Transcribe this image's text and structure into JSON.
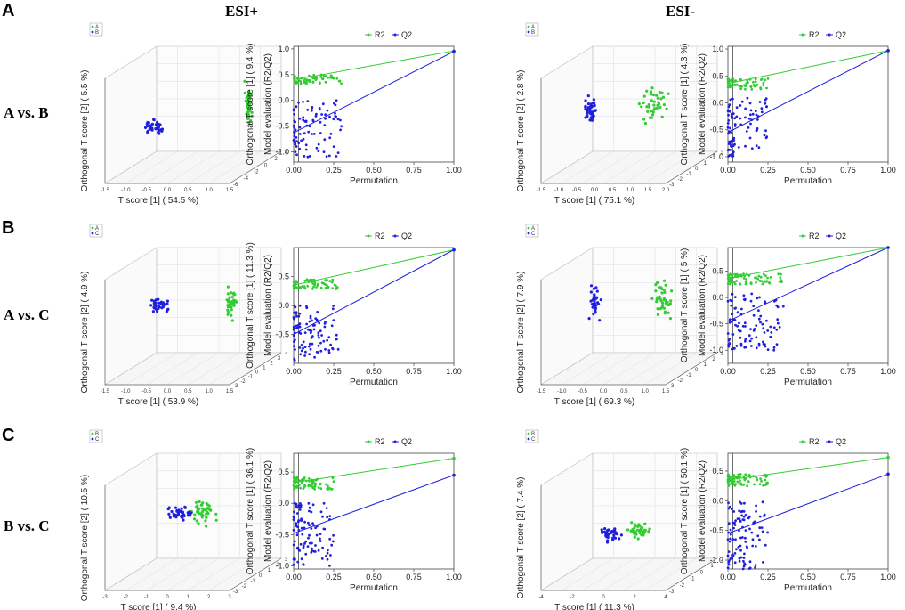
{
  "figure": {
    "panel_letters": [
      "A",
      "B",
      "C"
    ],
    "column_headers": [
      "ESI+",
      "ESI-"
    ],
    "row_labels": [
      "A vs. B",
      "A vs. C",
      "B vs. C"
    ]
  },
  "colors": {
    "green": "#33cc33",
    "blue": "#1f1fdd"
  },
  "chart_data": [
    {
      "type": "scatter3d",
      "row": 0,
      "col": 0,
      "title": "",
      "xlabel": "T score [1] ( 54.5 %)",
      "ylabel": "Orthogonal T score [2] ( 5.5 %)",
      "legend": [
        "A",
        "B"
      ],
      "x_ticks": [
        "-1.5",
        "-1.0",
        "-0.5",
        "0.0",
        "0.5",
        "1.0",
        "1.5"
      ],
      "depth_ticks": [
        "4",
        "2",
        "0",
        "-2",
        "-4",
        "-6"
      ],
      "groups": [
        {
          "name": "A",
          "center": [
            0.9,
            0.55
          ],
          "spread": [
            0.03,
            0.28
          ],
          "n": 40
        },
        {
          "name": "B",
          "center": [
            0.27,
            0.78
          ],
          "spread": [
            0.09,
            0.09
          ],
          "n": 40
        }
      ]
    },
    {
      "type": "scatter",
      "row": 0,
      "col": 1,
      "xlabel": "Permutation",
      "ylabel": "Model evaluation (R2/Q2)",
      "y2label": "Orthogonal T score [1] ( 9.4 %)",
      "legend": [
        "R2",
        "Q2"
      ],
      "xlim": [
        0,
        1
      ],
      "ylim": [
        -1.2,
        1.05
      ],
      "x_ticks": [
        "0.00",
        "0.25",
        "0.50",
        "0.75",
        "1.00"
      ],
      "y_ticks": [
        "-1.0",
        "-0.5",
        "0.0",
        "0.5",
        "1.0"
      ],
      "series": [
        {
          "name": "R2",
          "line": [
            [
              0.0,
              0.4
            ],
            [
              1.0,
              0.96
            ]
          ],
          "cloud": {
            "x": [
              0,
              0.3
            ],
            "y": [
              0.32,
              0.5
            ]
          },
          "n": 60
        },
        {
          "name": "Q2",
          "line": [
            [
              0.0,
              -0.63
            ],
            [
              1.0,
              0.95
            ]
          ],
          "cloud": {
            "x": [
              0,
              0.3
            ],
            "y": [
              -1.1,
              0.0
            ]
          },
          "n": 90
        }
      ]
    },
    {
      "type": "scatter3d",
      "row": 0,
      "col": 2,
      "xlabel": "T score [1] ( 75.1 %)",
      "ylabel": "Orthogonal T score [2] ( 2.8 %)",
      "legend": [
        "A",
        "B"
      ],
      "x_ticks": [
        "-1.5",
        "-1.0",
        "-0.5",
        "0.0",
        "0.5",
        "1.0",
        "1.5",
        "2.0"
      ],
      "depth_ticks": [
        "3",
        "2",
        "1",
        "0",
        "-1",
        "-2",
        "-3"
      ],
      "groups": [
        {
          "name": "A",
          "center": [
            0.7,
            0.55
          ],
          "spread": [
            0.12,
            0.25
          ],
          "n": 40
        },
        {
          "name": "B",
          "center": [
            0.27,
            0.6
          ],
          "spread": [
            0.06,
            0.18
          ],
          "n": 40
        }
      ]
    },
    {
      "type": "scatter",
      "row": 0,
      "col": 3,
      "xlabel": "Permutation",
      "ylabel": "Model evaluation (R2/Q2)",
      "y2label": "Orthogonal T score [1] ( 4.3 %)",
      "legend": [
        "R2",
        "Q2"
      ],
      "xlim": [
        0,
        1
      ],
      "ylim": [
        -1.1,
        1.05
      ],
      "x_ticks": [
        "0.00",
        "0.25",
        "0.50",
        "0.75",
        "1.00"
      ],
      "y_ticks": [
        "-1.0",
        "-0.5",
        "0.0",
        "0.5",
        "1.0"
      ],
      "series": [
        {
          "name": "R2",
          "line": [
            [
              0.0,
              0.36
            ],
            [
              1.0,
              0.97
            ]
          ],
          "cloud": {
            "x": [
              0,
              0.25
            ],
            "y": [
              0.25,
              0.45
            ]
          },
          "n": 60
        },
        {
          "name": "Q2",
          "line": [
            [
              0.0,
              -0.55
            ],
            [
              1.0,
              0.97
            ]
          ],
          "cloud": {
            "x": [
              0,
              0.25
            ],
            "y": [
              -1.0,
              0.1
            ]
          },
          "n": 90
        }
      ]
    },
    {
      "type": "scatter3d",
      "row": 1,
      "col": 0,
      "xlabel": "T score [1] ( 53.9 %)",
      "ylabel": "Orthogonal T score [2] ( 4.9 %)",
      "legend": [
        "A",
        "C"
      ],
      "x_ticks": [
        "-1.5",
        "-1.0",
        "-0.5",
        "0.0",
        "0.5",
        "1.0",
        "1.5"
      ],
      "depth_ticks": [
        "4",
        "3",
        "2",
        "1",
        "0",
        "-1",
        "-2",
        "-3"
      ],
      "groups": [
        {
          "name": "A",
          "center": [
            0.78,
            0.5
          ],
          "spread": [
            0.05,
            0.25
          ],
          "n": 40
        },
        {
          "name": "C",
          "center": [
            0.3,
            0.55
          ],
          "spread": [
            0.1,
            0.1
          ],
          "n": 35
        }
      ]
    },
    {
      "type": "scatter",
      "row": 1,
      "col": 1,
      "xlabel": "Permutation",
      "ylabel": "Model evaluation (R2/Q2)",
      "y2label": "Orthogonal T score [1] ( 11.3 %)",
      "legend": [
        "R2",
        "Q2"
      ],
      "xlim": [
        0,
        1
      ],
      "ylim": [
        -1.0,
        1.0
      ],
      "x_ticks": [
        "0.00",
        "0.25",
        "0.50",
        "0.75",
        "1.00"
      ],
      "y_ticks": [
        "-0.5",
        "0.0",
        "0.5"
      ],
      "series": [
        {
          "name": "R2",
          "line": [
            [
              0.0,
              0.35
            ],
            [
              1.0,
              0.96
            ]
          ],
          "cloud": {
            "x": [
              0,
              0.28
            ],
            "y": [
              0.28,
              0.45
            ]
          },
          "n": 70
        },
        {
          "name": "Q2",
          "line": [
            [
              0.0,
              -0.5
            ],
            [
              1.0,
              0.96
            ]
          ],
          "cloud": {
            "x": [
              0,
              0.28
            ],
            "y": [
              -0.95,
              0.0
            ]
          },
          "n": 100
        }
      ]
    },
    {
      "type": "scatter3d",
      "row": 1,
      "col": 2,
      "xlabel": "T score [1] ( 69.3 %)",
      "ylabel": "Orthogonal T score [2] ( 7.9 %)",
      "legend": [
        "A",
        "C"
      ],
      "x_ticks": [
        "-1.5",
        "-1.0",
        "-0.5",
        "0.0",
        "0.5",
        "1.0",
        "1.5"
      ],
      "depth_ticks": [
        "3",
        "2",
        "1",
        "0",
        "-1",
        "-2",
        "-3"
      ],
      "groups": [
        {
          "name": "A",
          "center": [
            0.75,
            0.5
          ],
          "spread": [
            0.1,
            0.28
          ],
          "n": 40
        },
        {
          "name": "C",
          "center": [
            0.3,
            0.5
          ],
          "spread": [
            0.06,
            0.25
          ],
          "n": 35
        }
      ]
    },
    {
      "type": "scatter",
      "row": 1,
      "col": 3,
      "xlabel": "Permutation",
      "ylabel": "Model evaluation (R2/Q2)",
      "y2label": "Orthogonal T score [1] ( 5 %)",
      "legend": [
        "R2",
        "Q2"
      ],
      "xlim": [
        0,
        1
      ],
      "ylim": [
        -1.25,
        0.95
      ],
      "x_ticks": [
        "0.00",
        "0.25",
        "0.50",
        "0.75",
        "1.00"
      ],
      "y_ticks": [
        "-1.0",
        "-0.5",
        "0.0",
        "0.5"
      ],
      "series": [
        {
          "name": "R2",
          "line": [
            [
              0.0,
              0.36
            ],
            [
              1.0,
              0.95
            ]
          ],
          "cloud": {
            "x": [
              0,
              0.35
            ],
            "y": [
              0.25,
              0.45
            ]
          },
          "n": 70
        },
        {
          "name": "Q2",
          "line": [
            [
              0.0,
              -0.45
            ],
            [
              1.0,
              0.95
            ]
          ],
          "cloud": {
            "x": [
              0,
              0.35
            ],
            "y": [
              -1.0,
              0.1
            ]
          },
          "n": 100
        }
      ]
    },
    {
      "type": "scatter3d",
      "row": 2,
      "col": 0,
      "xlabel": "T score [1] ( 9.4 %)",
      "ylabel": "Orthogonal T score [2] ( 10.5 %)",
      "legend": [
        "B",
        "C"
      ],
      "x_ticks": [
        "-3",
        "-2",
        "-1",
        "0",
        "1",
        "2",
        "3"
      ],
      "depth_ticks": [
        "3",
        "2",
        "1",
        "0",
        "-1",
        "-2",
        "-3"
      ],
      "groups": [
        {
          "name": "B",
          "center": [
            0.6,
            0.55
          ],
          "spread": [
            0.12,
            0.18
          ],
          "n": 45
        },
        {
          "name": "C",
          "center": [
            0.45,
            0.55
          ],
          "spread": [
            0.12,
            0.12
          ],
          "n": 40
        }
      ]
    },
    {
      "type": "scatter",
      "row": 2,
      "col": 1,
      "xlabel": "Permutation",
      "ylabel": "Model evaluation (R2/Q2)",
      "y2label": "Orthogonal T score [1] ( 36.1 %)",
      "legend": [
        "R2",
        "Q2"
      ],
      "xlim": [
        0,
        1
      ],
      "ylim": [
        -1.05,
        0.8
      ],
      "x_ticks": [
        "0.00",
        "0.25",
        "0.50",
        "0.75",
        "1.00"
      ],
      "y_ticks": [
        "-1.0",
        "-0.5",
        "0.0",
        "0.5"
      ],
      "series": [
        {
          "name": "R2",
          "line": [
            [
              0.0,
              0.33
            ],
            [
              1.0,
              0.72
            ]
          ],
          "cloud": {
            "x": [
              0,
              0.25
            ],
            "y": [
              0.22,
              0.42
            ]
          },
          "n": 70
        },
        {
          "name": "Q2",
          "line": [
            [
              0.0,
              -0.48
            ],
            [
              1.0,
              0.45
            ]
          ],
          "cloud": {
            "x": [
              0,
              0.25
            ],
            "y": [
              -1.0,
              0.0
            ]
          },
          "n": 100
        }
      ]
    },
    {
      "type": "scatter3d",
      "row": 2,
      "col": 2,
      "xlabel": "T score [1] ( 11.3 %)",
      "ylabel": "Orthogonal T score [2] ( 7.4 %)",
      "legend": [
        "B",
        "C"
      ],
      "x_ticks": [
        "-4",
        "-2",
        "0",
        "2",
        "4"
      ],
      "depth_ticks": [
        "2",
        "1",
        "0",
        "-1",
        "-2",
        "-3"
      ],
      "groups": [
        {
          "name": "B",
          "center": [
            0.6,
            0.75
          ],
          "spread": [
            0.12,
            0.12
          ],
          "n": 45
        },
        {
          "name": "C",
          "center": [
            0.4,
            0.78
          ],
          "spread": [
            0.1,
            0.1
          ],
          "n": 40
        }
      ]
    },
    {
      "type": "scatter",
      "row": 2,
      "col": 3,
      "xlabel": "Permutation",
      "ylabel": "Model evaluation (R2/Q2)",
      "y2label": "Orthogonal T score [1] ( 50.1 %)",
      "legend": [
        "R2",
        "Q2"
      ],
      "xlim": [
        0,
        1
      ],
      "ylim": [
        -1.15,
        0.8
      ],
      "x_ticks": [
        "0.00",
        "0.25",
        "0.50",
        "0.75",
        "1.00"
      ],
      "y_ticks": [
        "-1.0",
        "-0.5",
        "0.0",
        "0.5"
      ],
      "series": [
        {
          "name": "R2",
          "line": [
            [
              0.0,
              0.35
            ],
            [
              1.0,
              0.73
            ]
          ],
          "cloud": {
            "x": [
              0,
              0.25
            ],
            "y": [
              0.25,
              0.45
            ]
          },
          "n": 70
        },
        {
          "name": "Q2",
          "line": [
            [
              0.0,
              -0.55
            ],
            [
              1.0,
              0.45
            ]
          ],
          "cloud": {
            "x": [
              0,
              0.25
            ],
            "y": [
              -1.15,
              0.0
            ]
          },
          "n": 100
        }
      ]
    }
  ]
}
